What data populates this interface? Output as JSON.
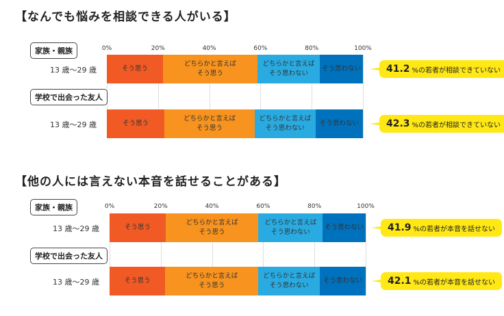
{
  "chart_data": [
    {
      "type": "bar",
      "stacked": true,
      "orientation": "horizontal",
      "title": "【なんでも悩みを相談できる人がいる】",
      "ticks": [
        "0%",
        "20%",
        "40%",
        "60%",
        "80%",
        "100%"
      ],
      "xlim": [
        0,
        100
      ],
      "legend": [
        "そう思う",
        "どちらかと言えば\nそう思う",
        "どちらかと言えば\nそう思わない",
        "そう思わない"
      ],
      "colors": [
        "#f15a24",
        "#f7931e",
        "#29abe2",
        "#0071bc"
      ],
      "groups": [
        {
          "label": "家族・親族",
          "row": "13 歳〜29 歳",
          "values": [
            21.9,
            36.9,
            24.4,
            16.8
          ],
          "callout_num": "41.2",
          "callout_text": "%の若者が相談できていない"
        },
        {
          "label": "学校で出会った友人",
          "row": "13 歳〜29 歳",
          "values": [
            22.5,
            35.2,
            23.8,
            18.5
          ],
          "callout_num": "42.3",
          "callout_text": "%の若者が相談できていない"
        }
      ]
    },
    {
      "type": "bar",
      "stacked": true,
      "orientation": "horizontal",
      "title": "【他の人には言えない本音を話せることがある】",
      "ticks": [
        "0%",
        "20%",
        "40%",
        "60%",
        "80%",
        "100%"
      ],
      "xlim": [
        0,
        100
      ],
      "legend": [
        "そう思う",
        "どちらかと言えば\nそう思う",
        "どちらかと言えば\nそう思わない",
        "そう思わない"
      ],
      "colors": [
        "#f15a24",
        "#f7931e",
        "#29abe2",
        "#0071bc"
      ],
      "groups": [
        {
          "label": "家族・親族",
          "row": "13 歳〜29 歳",
          "values": [
            21.9,
            36.2,
            25.1,
            16.8
          ],
          "callout_num": "41.9",
          "callout_text": "%の若者が本音を話せない"
        },
        {
          "label": "学校で出会った友人",
          "row": "13 歳〜29 歳",
          "values": [
            21.7,
            36.4,
            24.0,
            17.9
          ],
          "callout_num": "42.1",
          "callout_text": "%の若者が本音を話せない"
        }
      ]
    }
  ]
}
